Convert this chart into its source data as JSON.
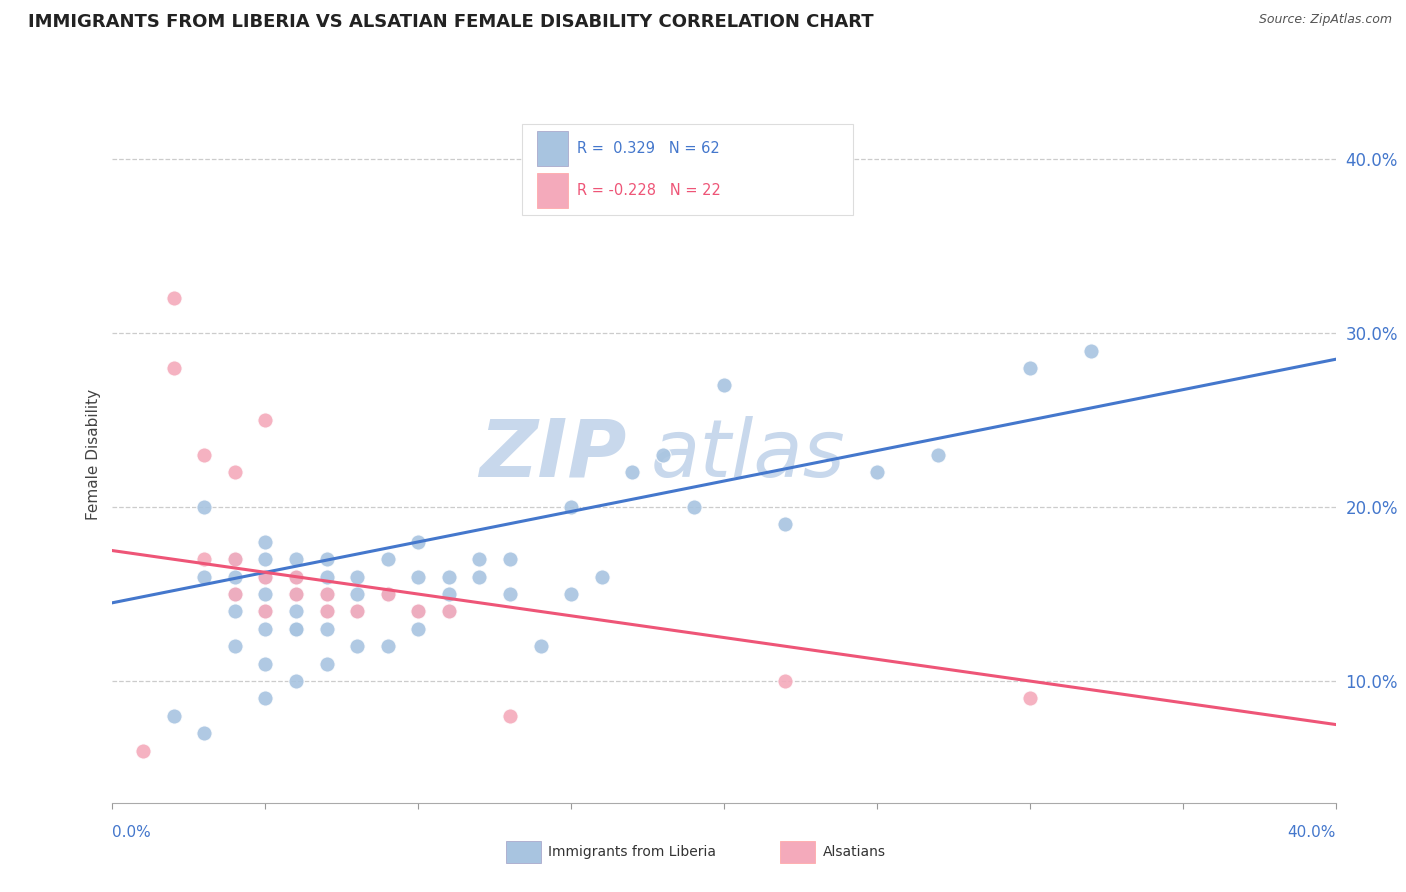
{
  "title": "IMMIGRANTS FROM LIBERIA VS ALSATIAN FEMALE DISABILITY CORRELATION CHART",
  "source": "Source: ZipAtlas.com",
  "ylabel": "Female Disability",
  "y_ticks": [
    0.1,
    0.2,
    0.3,
    0.4
  ],
  "y_tick_labels": [
    "10.0%",
    "20.0%",
    "30.0%",
    "40.0%"
  ],
  "x_lim": [
    0.0,
    0.4
  ],
  "y_lim": [
    0.03,
    0.43
  ],
  "blue_color": "#A8C4E0",
  "pink_color": "#F4AABB",
  "blue_line_color": "#4477CC",
  "pink_line_color": "#EE5577",
  "blue_label_color": "#4477CC",
  "watermark_text": "ZIP",
  "watermark_text2": "atlas",
  "watermark_color": "#C8D8EC",
  "grid_color": "#CCCCCC",
  "background_color": "#FFFFFF",
  "blue_scatter_x": [
    0.02,
    0.03,
    0.03,
    0.04,
    0.04,
    0.04,
    0.04,
    0.05,
    0.05,
    0.05,
    0.05,
    0.05,
    0.05,
    0.06,
    0.06,
    0.06,
    0.06,
    0.06,
    0.06,
    0.07,
    0.07,
    0.07,
    0.07,
    0.07,
    0.08,
    0.08,
    0.08,
    0.09,
    0.09,
    0.1,
    0.1,
    0.1,
    0.11,
    0.11,
    0.12,
    0.12,
    0.13,
    0.14,
    0.15,
    0.16,
    0.17,
    0.18,
    0.2,
    0.22,
    0.25,
    0.27,
    0.3,
    0.32,
    0.05,
    0.06,
    0.07,
    0.08,
    0.06,
    0.05,
    0.04,
    0.03,
    0.09,
    0.1,
    0.11,
    0.13,
    0.15,
    0.19
  ],
  "blue_scatter_y": [
    0.08,
    0.16,
    0.2,
    0.14,
    0.15,
    0.16,
    0.17,
    0.13,
    0.14,
    0.15,
    0.16,
    0.17,
    0.18,
    0.13,
    0.14,
    0.15,
    0.15,
    0.16,
    0.17,
    0.13,
    0.14,
    0.15,
    0.16,
    0.17,
    0.14,
    0.15,
    0.16,
    0.15,
    0.17,
    0.14,
    0.16,
    0.18,
    0.15,
    0.16,
    0.16,
    0.17,
    0.17,
    0.12,
    0.2,
    0.16,
    0.22,
    0.23,
    0.27,
    0.19,
    0.22,
    0.23,
    0.28,
    0.29,
    0.09,
    0.1,
    0.11,
    0.12,
    0.13,
    0.11,
    0.12,
    0.07,
    0.12,
    0.13,
    0.14,
    0.15,
    0.15,
    0.2
  ],
  "pink_scatter_x": [
    0.01,
    0.02,
    0.03,
    0.03,
    0.04,
    0.04,
    0.04,
    0.05,
    0.05,
    0.06,
    0.06,
    0.07,
    0.07,
    0.08,
    0.09,
    0.1,
    0.11,
    0.13,
    0.22,
    0.3,
    0.02,
    0.05
  ],
  "pink_scatter_y": [
    0.06,
    0.28,
    0.23,
    0.17,
    0.22,
    0.17,
    0.15,
    0.14,
    0.16,
    0.16,
    0.15,
    0.14,
    0.15,
    0.14,
    0.15,
    0.14,
    0.14,
    0.08,
    0.1,
    0.09,
    0.32,
    0.25
  ],
  "blue_line_y_start": 0.145,
  "blue_line_y_end": 0.285,
  "pink_line_y_start": 0.175,
  "pink_line_y_end": 0.075
}
